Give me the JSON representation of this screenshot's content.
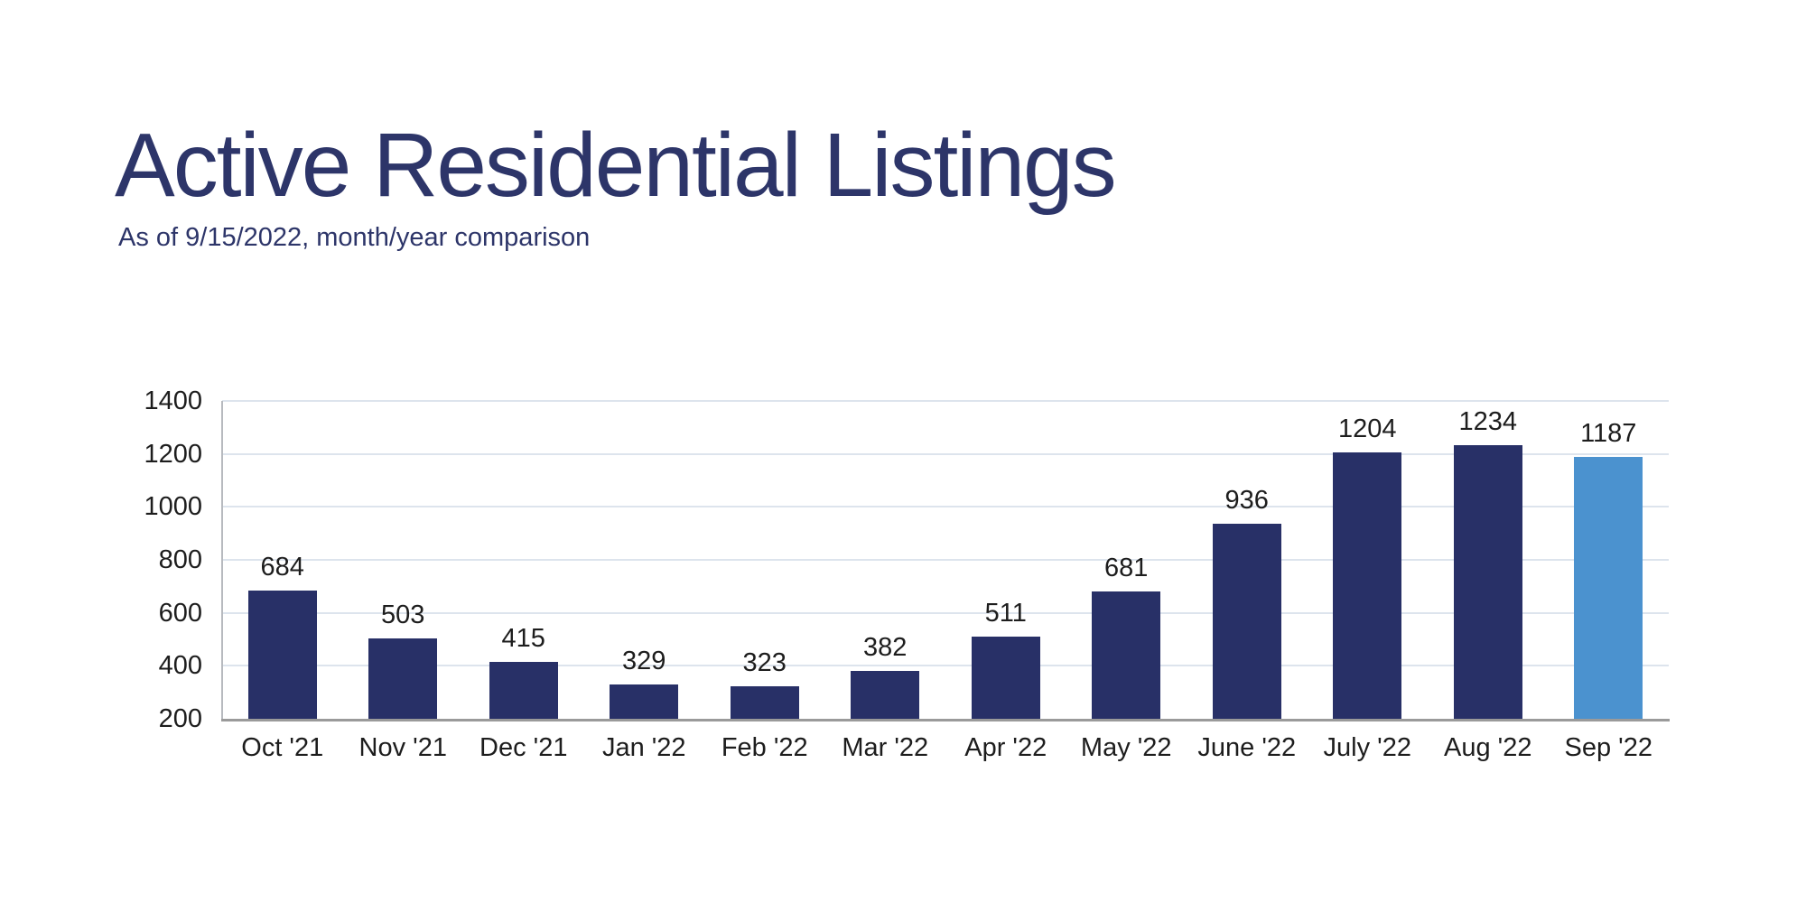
{
  "page": {
    "background": "#ffffff"
  },
  "header": {
    "title": "Active Residential Listings",
    "subtitle": "As of 9/15/2022, month/year comparison",
    "title_color": "#2d3569"
  },
  "chart_data": {
    "type": "bar",
    "title": "Active Residential Listings",
    "subtitle": "As of 9/15/2022, month/year comparison",
    "categories": [
      "Oct '21",
      "Nov '21",
      "Dec '21",
      "Jan '22",
      "Feb '22",
      "Mar '22",
      "Apr '22",
      "May '22",
      "June '22",
      "July '22",
      "Aug '22",
      "Sep '22"
    ],
    "values": [
      684,
      503,
      415,
      329,
      323,
      382,
      511,
      681,
      936,
      1204,
      1234,
      1187
    ],
    "xlabel": "",
    "ylabel": "",
    "ylim": [
      200,
      1400
    ],
    "ytick_step": 200,
    "ytick_labels": [
      "1400",
      "1200",
      "1000",
      "800",
      "600",
      "400",
      "200"
    ],
    "grid": true,
    "legend_position": "none",
    "bar_color": "#283067",
    "highlight_index": 11,
    "highlight_color": "#4b92cf",
    "gridline_color": "#dde4ed",
    "axis_text_color": "#1d1d1d"
  }
}
